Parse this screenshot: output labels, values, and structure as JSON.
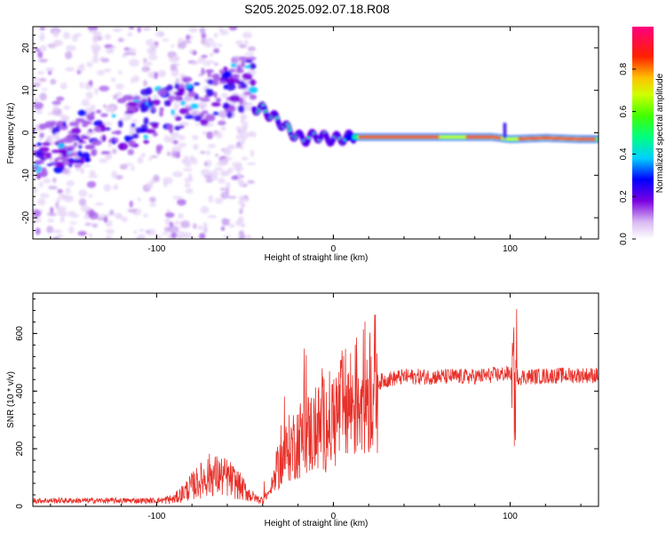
{
  "title": "S205.2025.092.07.18.R08",
  "chart_data": [
    {
      "type": "heatmap",
      "xlabel": "Height of straight line (km)",
      "ylabel": "Frequency (Hz)",
      "xlim": [
        -170,
        150
      ],
      "ylim": [
        -25,
        25
      ],
      "x_ticks": [
        -100,
        0,
        100
      ],
      "y_ticks": [
        -20,
        -10,
        0,
        10,
        20
      ],
      "colorbar": {
        "label": "Normalized spectral amplitude",
        "range": [
          0,
          1
        ],
        "ticks": [
          "0.0",
          "0.2",
          "0.4",
          "0.6",
          "0.8"
        ]
      },
      "ridge_trace": {
        "description_values": "dominant frequency vs height",
        "x": [
          -45,
          -40,
          -35,
          -30,
          -25,
          -20,
          -15,
          -10,
          -5,
          0,
          10,
          30,
          60,
          90,
          100,
          120,
          140,
          148
        ],
        "y": [
          6,
          5.5,
          4,
          2.5,
          0.5,
          -1,
          -1.5,
          -0.5,
          -1.2,
          -1.5,
          -1,
          -1,
          -1,
          -1,
          -1.5,
          -1.2,
          -1.5,
          -1.5
        ]
      }
    },
    {
      "type": "line",
      "xlabel": "Height of straight line (km)",
      "ylabel": "SNR (10 * v/v)",
      "xlim": [
        -170,
        150
      ],
      "ylim": [
        0,
        740
      ],
      "x_ticks": [
        -100,
        0,
        100
      ],
      "y_ticks": [
        0,
        200,
        400,
        600
      ],
      "series": [
        {
          "color": "#e8312a",
          "envelope_x": [
            -170,
            -100,
            -90,
            -80,
            -70,
            -60,
            -55,
            -45,
            -40,
            -35,
            -30,
            -25,
            -20,
            -15,
            -10,
            -5,
            0,
            5,
            10,
            15,
            20,
            25,
            30,
            40,
            60,
            80,
            98,
            102,
            104,
            110,
            130,
            150
          ],
          "envelope_y": [
            20,
            20,
            25,
            70,
            110,
            100,
            80,
            30,
            20,
            60,
            150,
            200,
            230,
            250,
            260,
            290,
            300,
            340,
            360,
            390,
            420,
            430,
            440,
            450,
            450,
            450,
            460,
            460,
            450,
            450,
            455,
            455
          ]
        }
      ]
    }
  ]
}
